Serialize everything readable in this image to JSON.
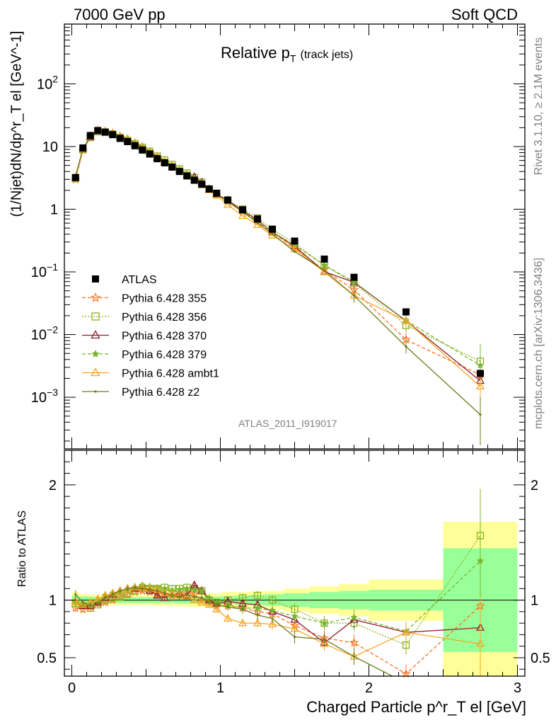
{
  "header": {
    "left": "7000 GeV pp",
    "right": "Soft QCD",
    "plot_title": "Relative p",
    "plot_title_sub": "T",
    "plot_title_suffix": "(track jets)",
    "side_top": "Rivet 3.1.10, ≥ 2.1M events",
    "side_bottom": "mcplots.cern.ch [arXiv:1306.3436]",
    "analysis": "ATLAS_2011_I919017"
  },
  "axes": {
    "ylabel_main": "(1/Njet)dN/dp^r_T el [GeV^-1]",
    "ylabel_ratio": "Ratio to ATLAS",
    "xlabel": "Charged Particle p^r_T el [GeV]"
  },
  "chart_data": {
    "type": "scatter",
    "x": [
      0.025,
      0.075,
      0.125,
      0.175,
      0.225,
      0.275,
      0.325,
      0.375,
      0.425,
      0.475,
      0.525,
      0.575,
      0.625,
      0.675,
      0.725,
      0.775,
      0.825,
      0.875,
      0.925,
      0.975,
      1.05,
      1.15,
      1.25,
      1.35,
      1.5,
      1.7,
      1.9,
      2.25,
      2.75
    ],
    "xlim": [
      -0.05,
      3.05
    ],
    "main_ylim": [
      0.00015,
      900
    ],
    "main_yscale": "log",
    "ratio_ylim": [
      0.34,
      2.3
    ],
    "data": {
      "name": "ATLAS",
      "values": [
        3.2,
        9.5,
        15.0,
        18.0,
        17.0,
        15.5,
        13.5,
        12.0,
        10.3,
        8.8,
        7.6,
        6.4,
        5.5,
        4.7,
        4.0,
        3.4,
        2.9,
        2.5,
        2.1,
        1.8,
        1.4,
        0.98,
        0.7,
        0.48,
        0.31,
        0.16,
        0.082,
        0.023,
        0.0024
      ],
      "band_inner": [
        0.04,
        0.03,
        0.03,
        0.025,
        0.025,
        0.025,
        0.025,
        0.025,
        0.025,
        0.025,
        0.025,
        0.025,
        0.025,
        0.025,
        0.03,
        0.03,
        0.03,
        0.03,
        0.03,
        0.03,
        0.035,
        0.04,
        0.045,
        0.05,
        0.06,
        0.07,
        0.08,
        0.09,
        0.45
      ],
      "band_outer": [
        0.07,
        0.055,
        0.05,
        0.045,
        0.045,
        0.045,
        0.045,
        0.045,
        0.045,
        0.045,
        0.045,
        0.05,
        0.05,
        0.05,
        0.055,
        0.055,
        0.06,
        0.06,
        0.06,
        0.06,
        0.07,
        0.07,
        0.075,
        0.08,
        0.1,
        0.12,
        0.14,
        0.18,
        0.68
      ]
    },
    "series": [
      {
        "name": "Pythia 6.428 355",
        "color": "#ff6f1e",
        "style": "dashed",
        "marker": "star-open",
        "ratio": [
          0.93,
          0.92,
          0.94,
          0.97,
          0.98,
          1.0,
          1.03,
          1.05,
          1.07,
          1.08,
          1.07,
          1.05,
          1.05,
          1.04,
          1.05,
          1.06,
          1.05,
          1.0,
          0.98,
          0.95,
          0.95,
          0.93,
          0.9,
          0.88,
          0.78,
          0.67,
          0.63,
          0.36,
          0.95
        ]
      },
      {
        "name": "Pythia 6.428 356",
        "color": "#8eb21c",
        "style": "dotted",
        "marker": "square-open",
        "ratio": [
          0.97,
          0.95,
          0.93,
          0.96,
          1.0,
          1.02,
          1.03,
          1.05,
          1.08,
          1.1,
          1.1,
          1.1,
          1.11,
          1.1,
          1.1,
          1.11,
          1.1,
          1.08,
          1.0,
          0.98,
          1.0,
          1.02,
          1.04,
          1.0,
          0.92,
          0.8,
          0.8,
          0.61,
          1.56
        ]
      },
      {
        "name": "Pythia 6.428 370",
        "color": "#911c2d",
        "style": "solid",
        "marker": "triangle-open",
        "ratio": [
          0.99,
          0.95,
          0.95,
          0.98,
          1.02,
          1.05,
          1.08,
          1.1,
          1.1,
          1.12,
          1.08,
          1.04,
          1.02,
          1.05,
          1.05,
          1.04,
          1.13,
          1.08,
          1.0,
          0.97,
          0.99,
          0.97,
          0.96,
          0.9,
          0.83,
          0.63,
          0.83,
          0.72,
          0.76
        ]
      },
      {
        "name": "Pythia 6.428 379",
        "color": "#76b52a",
        "style": "dashed",
        "marker": "star-filled",
        "ratio": [
          0.98,
          0.96,
          0.97,
          1.0,
          1.04,
          1.06,
          1.07,
          1.09,
          1.11,
          1.13,
          1.12,
          1.11,
          1.1,
          1.08,
          1.09,
          1.1,
          1.09,
          1.08,
          1.02,
          0.98,
          0.96,
          0.93,
          0.93,
          0.91,
          0.86,
          0.8,
          0.85,
          0.73,
          1.34
        ]
      },
      {
        "name": "Pythia 6.428 ambt1",
        "color": "#f5a623",
        "style": "solid",
        "marker": "triangle-open",
        "ratio": [
          0.99,
          0.96,
          0.98,
          1.01,
          1.04,
          1.06,
          1.08,
          1.1,
          1.11,
          1.11,
          1.1,
          1.09,
          1.06,
          1.05,
          1.04,
          1.03,
          1.0,
          0.98,
          0.96,
          0.92,
          0.84,
          0.8,
          0.8,
          0.79,
          0.75,
          0.62,
          0.51,
          0.72,
          0.62
        ]
      },
      {
        "name": "Pythia 6.428 z2",
        "color": "#6e7a1a",
        "style": "solid",
        "marker": "dot",
        "ratio": [
          1.05,
          0.98,
          0.95,
          0.97,
          1.02,
          1.05,
          1.08,
          1.1,
          1.11,
          1.1,
          1.09,
          1.08,
          1.06,
          1.04,
          1.03,
          1.05,
          1.03,
          1.02,
          0.98,
          0.96,
          0.94,
          0.92,
          0.87,
          0.84,
          0.68,
          0.66,
          0.51,
          0.28,
          0.22
        ]
      }
    ],
    "main_yticks": [
      {
        "value": 0.001,
        "base": "10",
        "exp": "−3"
      },
      {
        "value": 0.01,
        "base": "10",
        "exp": "−2"
      },
      {
        "value": 0.1,
        "base": "10",
        "exp": "−1"
      },
      {
        "value": 1,
        "base": "1",
        "exp": ""
      },
      {
        "value": 10,
        "base": "10",
        "exp": ""
      },
      {
        "value": 100,
        "base": "10",
        "exp": "2"
      }
    ],
    "ratio_yticks": [
      {
        "value": 0.5,
        "label": "0.5"
      },
      {
        "value": 1,
        "label": "1"
      },
      {
        "value": 2,
        "label": "2"
      }
    ],
    "xticks": [
      {
        "value": 0,
        "label": "0"
      },
      {
        "value": 1,
        "label": "1"
      },
      {
        "value": 2,
        "label": "2"
      },
      {
        "value": 3,
        "label": "3"
      }
    ],
    "legend_position": "left-middle",
    "grid": false
  }
}
